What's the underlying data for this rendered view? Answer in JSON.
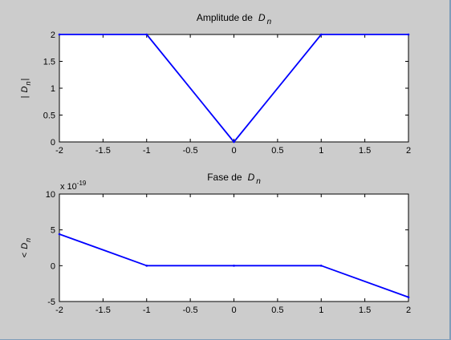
{
  "chart_data": [
    {
      "type": "line",
      "title_text": "Amplitude de",
      "title_symbol": "D",
      "title_subscript": "n",
      "xlabel": "",
      "ylabel_prefix": "|",
      "ylabel_symbol": "D",
      "ylabel_subscript": "n",
      "ylabel_suffix": "|",
      "xlim": [
        -2,
        2
      ],
      "ylim": [
        0,
        2
      ],
      "xticks": [
        -2,
        -1.5,
        -1,
        -0.5,
        0,
        0.5,
        1,
        1.5,
        2
      ],
      "xtick_labels": [
        "-2",
        "-1.5",
        "-1",
        "-0.5",
        "0",
        "0.5",
        "1",
        "1.5",
        "2"
      ],
      "yticks": [
        0,
        0.5,
        1,
        1.5,
        2
      ],
      "ytick_labels": [
        "0",
        "0.5",
        "1",
        "1.5",
        "2"
      ],
      "grid": false,
      "series": [
        {
          "color": "#0000ff",
          "x": [
            -2,
            -1,
            0,
            1,
            2
          ],
          "y": [
            2,
            2,
            0,
            2,
            2
          ]
        }
      ]
    },
    {
      "type": "line",
      "title_text": "Fase de",
      "title_symbol": "D",
      "title_subscript": "n",
      "xlabel": "",
      "ylabel_prefix": "<",
      "ylabel_symbol": "D",
      "ylabel_subscript": "n",
      "ylabel_suffix": "",
      "y_multiplier_base": "x 10",
      "y_multiplier_exponent": "-19",
      "y_multiplier": 1e-19,
      "xlim": [
        -2,
        2
      ],
      "ylim": [
        -5e-19,
        1e-18
      ],
      "xticks": [
        -2,
        -1.5,
        -1,
        -0.5,
        0,
        0.5,
        1,
        1.5,
        2
      ],
      "xtick_labels": [
        "-2",
        "-1.5",
        "-1",
        "-0.5",
        "0",
        "0.5",
        "1",
        "1.5",
        "2"
      ],
      "yticks": [
        -5e-19,
        0,
        5e-19,
        1e-18
      ],
      "ytick_labels": [
        "-5",
        "0",
        "5",
        "10"
      ],
      "grid": false,
      "series": [
        {
          "color": "#0000ff",
          "x": [
            -2,
            -1,
            0,
            1,
            2
          ],
          "y": [
            4.4e-19,
            0,
            0,
            0,
            -4.4e-19
          ]
        }
      ]
    }
  ]
}
